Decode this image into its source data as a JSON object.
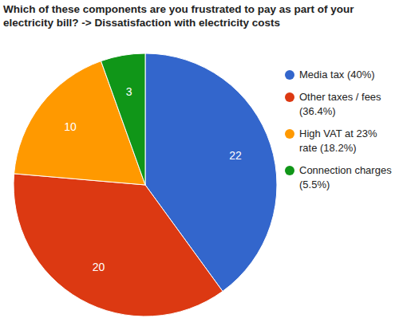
{
  "chart_data": {
    "type": "pie",
    "title": "Which of these components are you frustrated to pay as part of your electricity bill? -> Dissatisfaction with electricity costs",
    "categories": [
      "Media tax (40%)",
      "Other taxes / fees (36.4%)",
      "High VAT at 23% rate (18.2%)",
      "Connection charges (5.5%)"
    ],
    "values": [
      22,
      20,
      10,
      3
    ],
    "colors": [
      "#3366cc",
      "#dc3912",
      "#ff9900",
      "#109618"
    ],
    "data_labels": true,
    "legend": "right"
  }
}
